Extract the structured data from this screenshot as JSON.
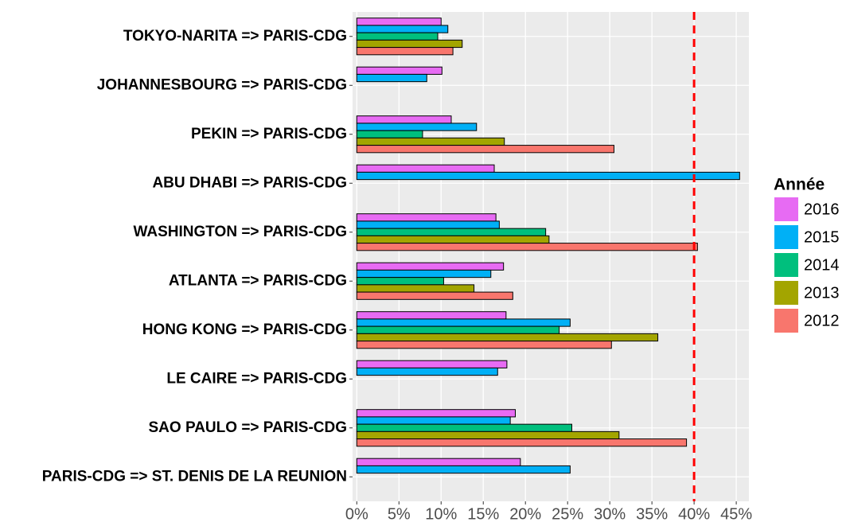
{
  "chart_data": {
    "type": "bar",
    "orientation": "horizontal",
    "categories": [
      "TOKYO-NARITA => PARIS-CDG",
      "JOHANNESBOURG => PARIS-CDG",
      "PEKIN => PARIS-CDG",
      "ABU DHABI => PARIS-CDG",
      "WASHINGTON => PARIS-CDG",
      "ATLANTA => PARIS-CDG",
      "HONG KONG => PARIS-CDG",
      "LE CAIRE => PARIS-CDG",
      "SAO PAULO => PARIS-CDG",
      "PARIS-CDG => ST. DENIS DE LA REUNION"
    ],
    "series": [
      {
        "name": "2016",
        "color": "#e76bf3",
        "values": [
          10.0,
          10.1,
          11.2,
          16.3,
          16.5,
          17.4,
          17.7,
          17.8,
          18.8,
          19.4
        ]
      },
      {
        "name": "2015",
        "color": "#00b0f6",
        "values": [
          10.8,
          8.3,
          14.2,
          45.4,
          16.9,
          15.9,
          25.3,
          16.7,
          18.2,
          25.3
        ]
      },
      {
        "name": "2014",
        "color": "#00bf7d",
        "values": [
          9.6,
          null,
          7.8,
          null,
          22.4,
          10.3,
          24.0,
          null,
          25.5,
          null
        ]
      },
      {
        "name": "2013",
        "color": "#a3a500",
        "values": [
          12.5,
          null,
          17.5,
          null,
          22.8,
          13.9,
          35.7,
          null,
          31.1,
          null
        ]
      },
      {
        "name": "2012",
        "color": "#f8766d",
        "values": [
          11.4,
          null,
          30.5,
          null,
          40.4,
          18.5,
          30.2,
          null,
          39.1,
          null
        ]
      }
    ],
    "xlim": [
      -0.5,
      46.5
    ],
    "xticks": [
      {
        "value": 0,
        "label": "0%"
      },
      {
        "value": 5,
        "label": "5%"
      },
      {
        "value": 10,
        "label": "10%"
      },
      {
        "value": 15,
        "label": "15%"
      },
      {
        "value": 20,
        "label": "20%"
      },
      {
        "value": 25,
        "label": "25%"
      },
      {
        "value": 30,
        "label": "30%"
      },
      {
        "value": 35,
        "label": "35%"
      },
      {
        "value": 40,
        "label": "40%"
      },
      {
        "value": 45,
        "label": "45%"
      }
    ],
    "reference_line": {
      "value": 40,
      "color": "#ff0000"
    },
    "legend_title": "Année",
    "legend_position": "right",
    "grid": true
  }
}
